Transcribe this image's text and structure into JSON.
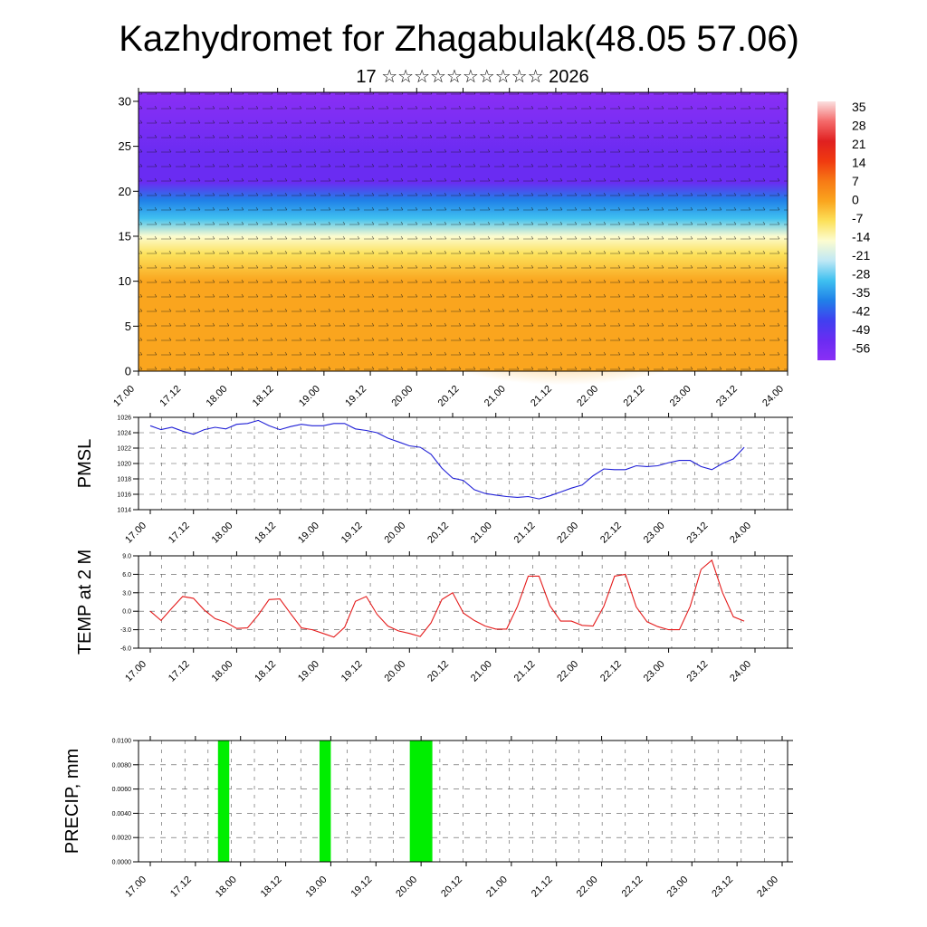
{
  "header": {
    "title": "Kazhydromet for Zhagabulak(48.05 57.06)",
    "subtitle": "17 ☆☆☆☆☆☆☆☆☆☆ 2026"
  },
  "time_ticks": [
    "17.00",
    "17.12",
    "18.00",
    "18.12",
    "19.00",
    "19.12",
    "20.00",
    "20.12",
    "21.00",
    "21.12",
    "22.00",
    "22.12",
    "23.00",
    "23.12",
    "24.00"
  ],
  "chart_data": [
    {
      "id": "upper-air",
      "type": "heatmap",
      "title": "",
      "ylabel": "",
      "y_ticks": [
        "0",
        "5",
        "10",
        "15",
        "20",
        "25",
        "30"
      ],
      "ylim": [
        0,
        31
      ],
      "xlim_hours": [
        0,
        168
      ],
      "colorbar": {
        "labels": [
          "35",
          "28",
          "21",
          "14",
          "7",
          "0",
          "-7",
          "-14",
          "-21",
          "-28",
          "-35",
          "-42",
          "-49",
          "-56"
        ],
        "colors": [
          "#fbe0e0",
          "#f46a6a",
          "#e02020",
          "#f03a10",
          "#f77a15",
          "#faa51e",
          "#fce15a",
          "#fcfcd0",
          "#bfe8f5",
          "#3fc0f0",
          "#2080e8",
          "#4040f0",
          "#6a2cf2",
          "#8a2ff5"
        ]
      },
      "vertical_profile": [
        {
          "level": 0,
          "temp": -2
        },
        {
          "level": 5,
          "temp": -3
        },
        {
          "level": 10,
          "temp": -5
        },
        {
          "level": 13,
          "temp": -8
        },
        {
          "level": 15,
          "temp": -16
        },
        {
          "level": 17,
          "temp": -28
        },
        {
          "level": 19,
          "temp": -40
        },
        {
          "level": 21,
          "temp": -52
        },
        {
          "level": 24,
          "temp": -56
        },
        {
          "level": 31,
          "temp": -58
        }
      ],
      "warm_core": {
        "time_hours": 110,
        "level": 4,
        "temp": 1
      }
    },
    {
      "id": "pmsl",
      "type": "line",
      "title": "",
      "ylabel": "PMSL",
      "y_ticks": [
        "1014",
        "1016",
        "1018",
        "1020",
        "1022",
        "1024",
        "1026"
      ],
      "ylim": [
        1014,
        1026
      ],
      "xlim_hours": [
        0,
        168
      ],
      "color": "#1f1fd6",
      "series": [
        {
          "name": "PMSL",
          "x_hours": [
            0,
            3,
            6,
            9,
            12,
            15,
            18,
            21,
            24,
            27,
            30,
            33,
            36,
            39,
            42,
            45,
            48,
            51,
            54,
            57,
            60,
            63,
            66,
            69,
            72,
            75,
            78,
            81,
            84,
            87,
            90,
            93,
            96,
            99,
            102,
            105,
            108,
            111,
            114,
            117,
            120,
            123,
            126,
            129,
            132,
            135,
            138,
            141,
            144,
            147,
            150,
            153,
            156,
            159,
            162,
            165
          ],
          "values": [
            1024.9,
            1024.4,
            1024.7,
            1024.2,
            1023.8,
            1024.4,
            1024.7,
            1024.5,
            1025.1,
            1025.2,
            1025.6,
            1024.9,
            1024.4,
            1024.8,
            1025.1,
            1024.9,
            1024.9,
            1025.2,
            1025.2,
            1024.5,
            1024.3,
            1024.0,
            1023.3,
            1022.8,
            1022.3,
            1022.1,
            1021.2,
            1019.4,
            1018.1,
            1017.8,
            1016.6,
            1016.1,
            1015.9,
            1015.7,
            1015.6,
            1015.7,
            1015.4,
            1015.8,
            1016.3,
            1016.8,
            1017.2,
            1018.4,
            1019.3,
            1019.2,
            1019.2,
            1019.7,
            1019.6,
            1019.7,
            1020.1,
            1020.4,
            1020.4,
            1019.6,
            1019.2,
            1020.0,
            1020.6,
            1022.1
          ]
        }
      ]
    },
    {
      "id": "temp2m",
      "type": "line",
      "title": "",
      "ylabel": "TEMP at 2 M",
      "y_ticks": [
        "-6.0",
        "-3.0",
        "0.0",
        "3.0",
        "6.0",
        "9.0"
      ],
      "ylim": [
        -6,
        9
      ],
      "xlim_hours": [
        0,
        168
      ],
      "color": "#e41a1a",
      "series": [
        {
          "name": "T2M",
          "x_hours": [
            0,
            3,
            6,
            9,
            12,
            15,
            18,
            21,
            24,
            27,
            30,
            33,
            36,
            39,
            42,
            45,
            48,
            51,
            54,
            57,
            60,
            63,
            66,
            69,
            72,
            75,
            78,
            81,
            84,
            87,
            90,
            93,
            96,
            99,
            102,
            105,
            108,
            111,
            114,
            117,
            120,
            123,
            126,
            129,
            132,
            135,
            138,
            141,
            144,
            147,
            150,
            153,
            156,
            159,
            162,
            165
          ],
          "values": [
            0.0,
            -1.5,
            0.5,
            2.4,
            2.1,
            0.2,
            -1.2,
            -1.8,
            -2.8,
            -2.7,
            -0.6,
            1.9,
            2.0,
            -0.4,
            -2.7,
            -3.0,
            -3.6,
            -4.2,
            -2.6,
            1.6,
            2.4,
            -0.5,
            -2.4,
            -3.2,
            -3.6,
            -4.1,
            -1.9,
            1.9,
            3.0,
            -0.3,
            -1.5,
            -2.4,
            -2.9,
            -2.9,
            0.8,
            5.7,
            5.7,
            0.9,
            -1.6,
            -1.6,
            -2.3,
            -2.4,
            0.8,
            5.7,
            6.0,
            0.7,
            -1.7,
            -2.5,
            -3.0,
            -3.0,
            0.8,
            6.8,
            8.3,
            3.0,
            -0.9,
            -1.6
          ]
        }
      ]
    },
    {
      "id": "precip",
      "type": "bar",
      "title": "",
      "ylabel": "PRECIP, mm",
      "y_ticks": [
        "0.0000",
        "0.0020",
        "0.0040",
        "0.0060",
        "0.0080",
        "0.0100"
      ],
      "ylim": [
        0,
        0.01
      ],
      "xlim_hours": [
        0,
        168
      ],
      "color": "#00ee00",
      "bars": [
        {
          "start_hours": 18,
          "end_hours": 21,
          "value": 0.01
        },
        {
          "start_hours": 45,
          "end_hours": 48,
          "value": 0.01
        },
        {
          "start_hours": 69,
          "end_hours": 75,
          "value": 0.01
        }
      ]
    }
  ]
}
